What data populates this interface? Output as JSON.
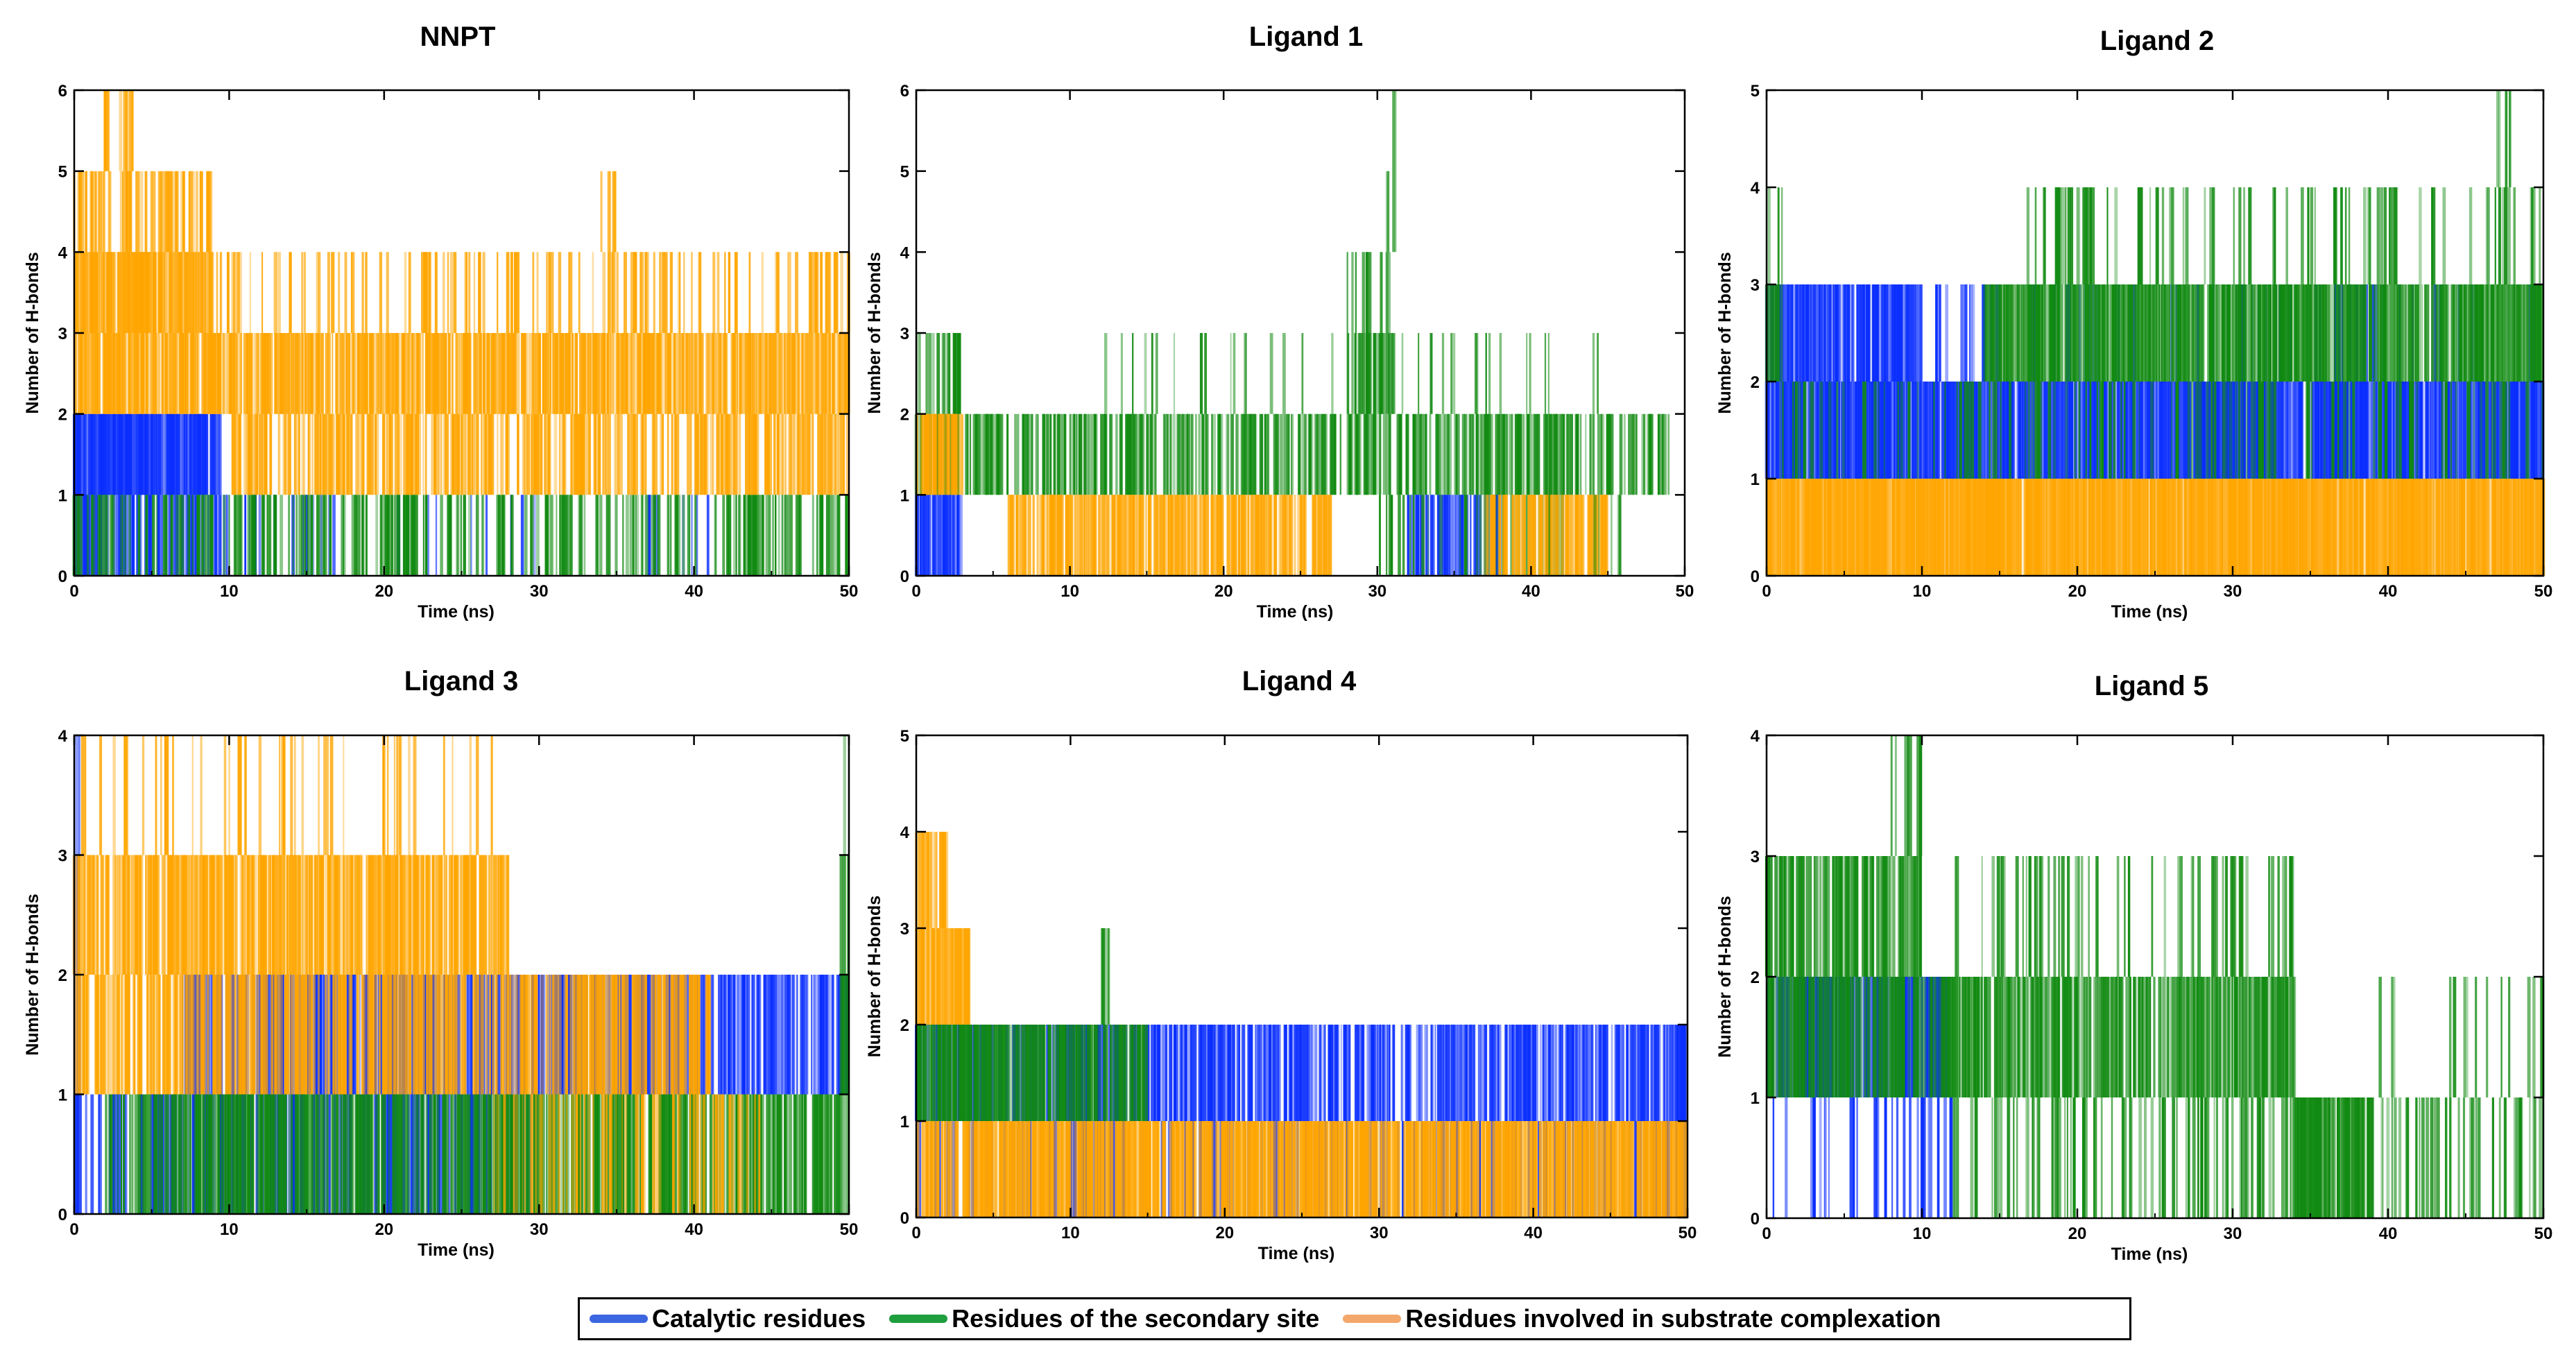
{
  "figure": {
    "legend": [
      {
        "label": "Catalytic residues",
        "color": "#3c66e0"
      },
      {
        "label": "Residues of the secondary site",
        "color": "#1e9e3c"
      },
      {
        "label": "Residues involved in substrate complexation",
        "color": "#f4a76a"
      }
    ]
  },
  "colors": {
    "catalytic": "#0a2eff",
    "secondary": "#118a11",
    "substrate": "#ffa500"
  },
  "chart_data": [
    {
      "type": "line",
      "title": "NNPT",
      "xlabel": "Time (ns)",
      "ylabel": "Number of H-bonds",
      "xlim": [
        0,
        50
      ],
      "ylim": [
        0,
        6
      ],
      "xticks": [
        "0",
        "10",
        "20",
        "30",
        "40",
        "50"
      ],
      "yticks": [
        "0",
        "1",
        "2",
        "3",
        "4",
        "5",
        "6"
      ],
      "series": [
        {
          "name": "Catalytic residues",
          "segments": [
            {
              "t0": 0,
              "t1": 9.5,
              "base": 1,
              "peak": 2,
              "density": 0.9
            },
            {
              "t0": 0,
              "t1": 10,
              "base": 0,
              "peak": 1,
              "density": 0.55
            },
            {
              "t0": 10,
              "t1": 30,
              "base": 0,
              "peak": 1,
              "density": 0.06
            },
            {
              "t0": 37,
              "t1": 41,
              "base": 0,
              "peak": 1,
              "density": 0.08
            }
          ]
        },
        {
          "name": "Residues of the secondary site",
          "segments": [
            {
              "t0": 0,
              "t1": 50,
              "base": 0,
              "peak": 1,
              "density": 0.25
            }
          ]
        },
        {
          "name": "Residues involved in substrate complexation",
          "segments": [
            {
              "t0": 0,
              "t1": 9,
              "base": 3,
              "peak": 4,
              "density": 0.85
            },
            {
              "t0": 0,
              "t1": 9,
              "base": 4,
              "peak": 5,
              "density": 0.35
            },
            {
              "t0": 2,
              "t1": 4,
              "base": 5,
              "peak": 6,
              "density": 0.2
            },
            {
              "t0": 0,
              "t1": 50,
              "base": 2,
              "peak": 3,
              "density": 0.7
            },
            {
              "t0": 9,
              "t1": 50,
              "base": 3,
              "peak": 4,
              "density": 0.18
            },
            {
              "t0": 10,
              "t1": 50,
              "base": 1,
              "peak": 2,
              "density": 0.45
            },
            {
              "t0": 34,
              "t1": 35,
              "base": 4,
              "peak": 5,
              "density": 0.3
            }
          ]
        }
      ]
    },
    {
      "type": "line",
      "title": "Ligand 1",
      "xlabel": "Time (ns)",
      "ylabel": "Number of H-bonds",
      "xlim": [
        0,
        50
      ],
      "ylim": [
        0,
        6
      ],
      "xticks": [
        "0",
        "10",
        "20",
        "30",
        "40",
        "50"
      ],
      "yticks": [
        "0",
        "1",
        "2",
        "3",
        "4",
        "5",
        "6"
      ],
      "series": [
        {
          "name": "Catalytic residues",
          "segments": [
            {
              "t0": 0,
              "t1": 3,
              "base": 0,
              "peak": 1,
              "density": 0.6
            },
            {
              "t0": 32,
              "t1": 38,
              "base": 0,
              "peak": 1,
              "density": 0.5
            }
          ]
        },
        {
          "name": "Residues of the secondary site",
          "segments": [
            {
              "t0": 0,
              "t1": 49,
              "base": 1,
              "peak": 2,
              "density": 0.4
            },
            {
              "t0": 0,
              "t1": 3,
              "base": 2,
              "peak": 3,
              "density": 0.3
            },
            {
              "t0": 28,
              "t1": 31,
              "base": 2,
              "peak": 4,
              "density": 0.6
            },
            {
              "t0": 30,
              "t1": 31.5,
              "base": 4,
              "peak": 6,
              "density": 0.2
            },
            {
              "t0": 12,
              "t1": 45,
              "base": 2,
              "peak": 3,
              "density": 0.05
            },
            {
              "t0": 30,
              "t1": 46,
              "base": 0,
              "peak": 1,
              "density": 0.15
            }
          ]
        },
        {
          "name": "Residues involved in substrate complexation",
          "segments": [
            {
              "t0": 0,
              "t1": 3,
              "base": 1,
              "peak": 2,
              "density": 0.5
            },
            {
              "t0": 6,
              "t1": 27,
              "base": 0,
              "peak": 1,
              "density": 0.55
            },
            {
              "t0": 37,
              "t1": 45,
              "base": 0,
              "peak": 1,
              "density": 0.5
            }
          ]
        }
      ]
    },
    {
      "type": "line",
      "title": "Ligand 2",
      "xlabel": "Time (ns)",
      "ylabel": "Number of H-bonds",
      "xlim": [
        0,
        50
      ],
      "ylim": [
        0,
        5
      ],
      "xticks": [
        "0",
        "10",
        "20",
        "30",
        "40",
        "50"
      ],
      "yticks": [
        "0",
        "1",
        "2",
        "3",
        "4",
        "5"
      ],
      "series": [
        {
          "name": "Catalytic residues",
          "segments": [
            {
              "t0": 0,
              "t1": 10,
              "base": 2,
              "peak": 3,
              "density": 0.75
            },
            {
              "t0": 0,
              "t1": 50,
              "base": 1,
              "peak": 2,
              "density": 0.85
            },
            {
              "t0": 10,
              "t1": 50,
              "base": 2,
              "peak": 3,
              "density": 0.12
            }
          ]
        },
        {
          "name": "Residues of the secondary site",
          "segments": [
            {
              "t0": 0,
              "t1": 1,
              "base": 2,
              "peak": 4,
              "density": 0.5
            },
            {
              "t0": 14,
              "t1": 50,
              "base": 2,
              "peak": 3,
              "density": 0.7
            },
            {
              "t0": 16,
              "t1": 50,
              "base": 3,
              "peak": 4,
              "density": 0.12
            },
            {
              "t0": 47,
              "t1": 48,
              "base": 4,
              "peak": 5,
              "density": 0.4
            },
            {
              "t0": 0,
              "t1": 50,
              "base": 1,
              "peak": 2,
              "density": 0.15
            }
          ]
        },
        {
          "name": "Residues involved in substrate complexation",
          "segments": [
            {
              "t0": 0,
              "t1": 50,
              "base": 0,
              "peak": 1,
              "density": 0.95
            }
          ]
        }
      ]
    },
    {
      "type": "line",
      "title": "Ligand 3",
      "xlabel": "Time (ns)",
      "ylabel": "Number of H-bonds",
      "xlim": [
        0,
        50
      ],
      "ylim": [
        0,
        4
      ],
      "xticks": [
        "0",
        "10",
        "20",
        "30",
        "40",
        "50"
      ],
      "yticks": [
        "0",
        "1",
        "2",
        "3",
        "4"
      ],
      "series": [
        {
          "name": "Catalytic residues",
          "segments": [
            {
              "t0": 0,
              "t1": 0.4,
              "base": 0,
              "peak": 4,
              "density": 1
            },
            {
              "t0": 0,
              "t1": 30,
              "base": 0,
              "peak": 1,
              "density": 0.35
            },
            {
              "t0": 7,
              "t1": 50,
              "base": 1,
              "peak": 2,
              "density": 0.5
            }
          ]
        },
        {
          "name": "Residues of the secondary site",
          "segments": [
            {
              "t0": 2,
              "t1": 50,
              "base": 0,
              "peak": 1,
              "density": 0.55
            },
            {
              "t0": 49.5,
              "t1": 50,
              "base": 1,
              "peak": 4,
              "density": 0.8
            }
          ]
        },
        {
          "name": "Residues involved in substrate complexation",
          "segments": [
            {
              "t0": 0,
              "t1": 28,
              "base": 2,
              "peak": 3,
              "density": 0.6
            },
            {
              "t0": 0,
              "t1": 27,
              "base": 3,
              "peak": 4,
              "density": 0.12
            },
            {
              "t0": 0,
              "t1": 41,
              "base": 1,
              "peak": 2,
              "density": 0.45
            },
            {
              "t0": 27,
              "t1": 45,
              "base": 0,
              "peak": 1,
              "density": 0.2
            }
          ]
        }
      ]
    },
    {
      "type": "line",
      "title": "Ligand 4",
      "xlabel": "Time (ns)",
      "ylabel": "Number of H-bonds",
      "xlim": [
        0,
        50
      ],
      "ylim": [
        0,
        5
      ],
      "xticks": [
        "0",
        "10",
        "20",
        "30",
        "40",
        "50"
      ],
      "yticks": [
        "0",
        "1",
        "2",
        "3",
        "4",
        "5"
      ],
      "series": [
        {
          "name": "Catalytic residues",
          "segments": [
            {
              "t0": 0,
              "t1": 50,
              "base": 1,
              "peak": 2,
              "density": 0.5
            },
            {
              "t0": 0,
              "t1": 50,
              "base": 0,
              "peak": 1,
              "density": 0.25
            }
          ]
        },
        {
          "name": "Residues of the secondary site",
          "segments": [
            {
              "t0": 0,
              "t1": 15,
              "base": 1,
              "peak": 2,
              "density": 0.7
            },
            {
              "t0": 12,
              "t1": 12.5,
              "base": 2,
              "peak": 3,
              "density": 0.6
            }
          ]
        },
        {
          "name": "Residues involved in substrate complexation",
          "segments": [
            {
              "t0": 0,
              "t1": 3.5,
              "base": 2,
              "peak": 3,
              "density": 0.9
            },
            {
              "t0": 0,
              "t1": 2,
              "base": 3,
              "peak": 4,
              "density": 0.4
            },
            {
              "t0": 0,
              "t1": 50,
              "base": 0,
              "peak": 1,
              "density": 0.7
            }
          ]
        }
      ]
    },
    {
      "type": "line",
      "title": "Ligand 5",
      "xlabel": "Time (ns)",
      "ylabel": "Number of H-bonds",
      "xlim": [
        0,
        50
      ],
      "ylim": [
        0,
        4
      ],
      "xticks": [
        "0",
        "10",
        "20",
        "30",
        "40",
        "50"
      ],
      "yticks": [
        "0",
        "1",
        "2",
        "3",
        "4"
      ],
      "series": [
        {
          "name": "Catalytic residues",
          "segments": [
            {
              "t0": 0,
              "t1": 12,
              "base": 1,
              "peak": 2,
              "density": 0.6
            },
            {
              "t0": 0,
              "t1": 12,
              "base": 0,
              "peak": 1,
              "density": 0.15
            }
          ]
        },
        {
          "name": "Residues of the secondary site",
          "segments": [
            {
              "t0": 0,
              "t1": 34,
              "base": 1,
              "peak": 2,
              "density": 0.6
            },
            {
              "t0": 0,
              "t1": 10,
              "base": 2,
              "peak": 3,
              "density": 0.55
            },
            {
              "t0": 7,
              "t1": 10,
              "base": 3,
              "peak": 4,
              "density": 0.2
            },
            {
              "t0": 12,
              "t1": 34,
              "base": 2,
              "peak": 3,
              "density": 0.15
            },
            {
              "t0": 12,
              "t1": 50,
              "base": 0,
              "peak": 1,
              "density": 0.2
            },
            {
              "t0": 34,
              "t1": 39,
              "base": 0,
              "peak": 1,
              "density": 0.7
            },
            {
              "t0": 39,
              "t1": 50,
              "base": 1,
              "peak": 2,
              "density": 0.1
            }
          ]
        },
        {
          "name": "Residues involved in substrate complexation",
          "segments": []
        }
      ]
    }
  ]
}
